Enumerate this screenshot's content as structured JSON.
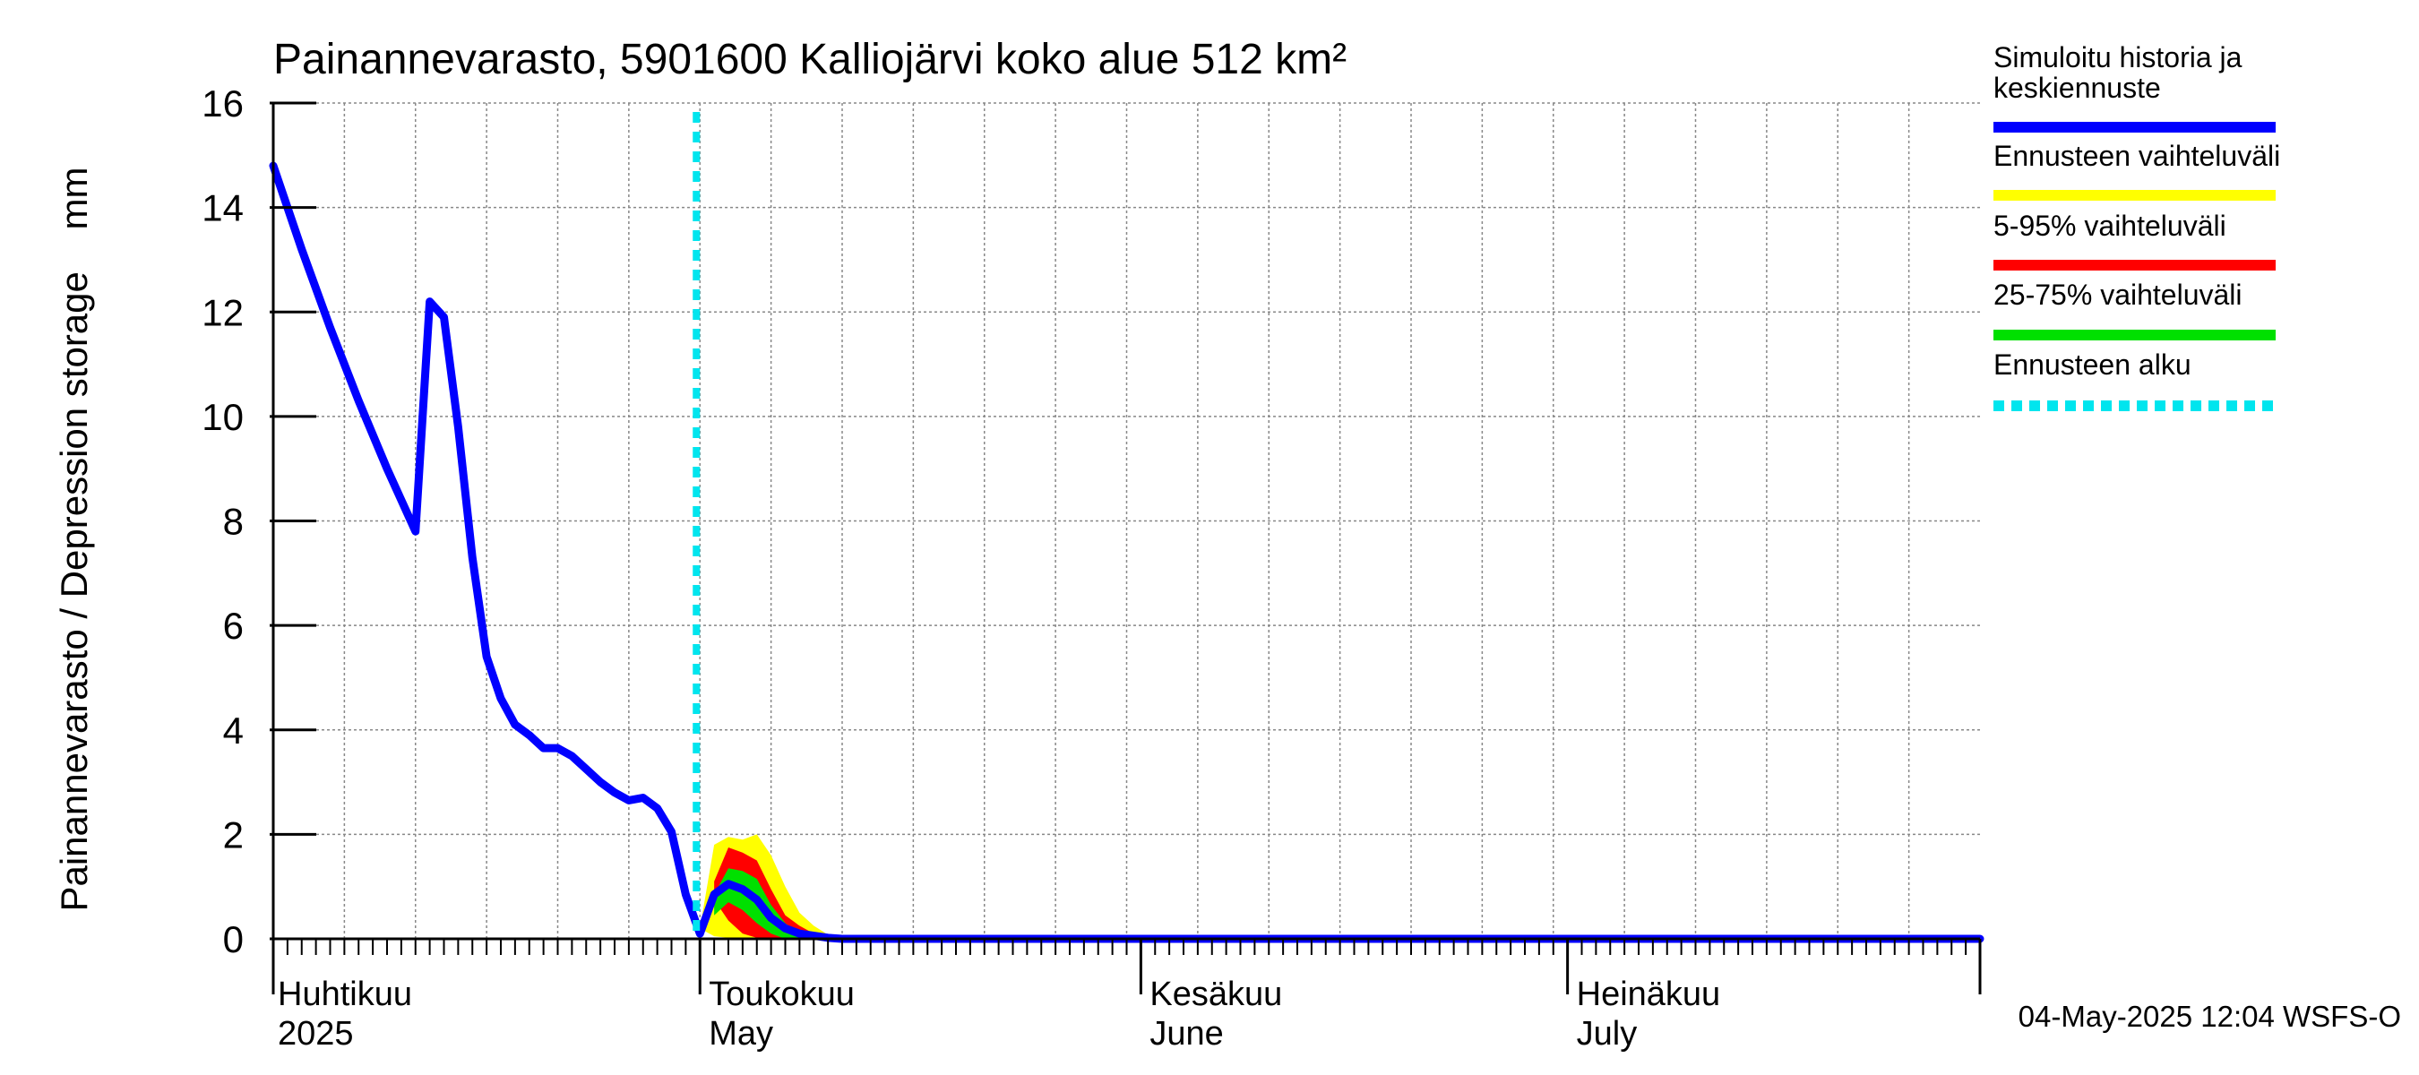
{
  "chart_data": {
    "type": "line",
    "title": "Painannevarasto, 5901600 Kalliojärvi koko alue 512 km²",
    "ylabel": "Painannevarasto / Depression storage    mm",
    "ylim": [
      0,
      16
    ],
    "yticks": [
      0,
      2,
      4,
      6,
      8,
      10,
      12,
      14,
      16
    ],
    "x_day_range": [
      0,
      120
    ],
    "grid": true,
    "x_month_labels": [
      {
        "day": 0,
        "fi": "Huhtikuu",
        "en": "2025"
      },
      {
        "day": 30,
        "fi": "Toukokuu",
        "en": "May"
      },
      {
        "day": 61,
        "fi": "Kesäkuu",
        "en": "June"
      },
      {
        "day": 91,
        "fi": "Heinäkuu",
        "en": "July"
      }
    ],
    "forecast_start_day": 30,
    "series": [
      {
        "name": "Simuloitu historia ja keskiennuste",
        "color": "#0000ff",
        "points": [
          [
            0,
            14.8
          ],
          [
            2,
            13.2
          ],
          [
            4,
            11.7
          ],
          [
            6,
            10.3
          ],
          [
            8,
            9.0
          ],
          [
            9,
            8.4
          ],
          [
            10,
            7.8
          ],
          [
            11,
            12.2
          ],
          [
            12,
            11.9
          ],
          [
            13,
            9.8
          ],
          [
            14,
            7.3
          ],
          [
            15,
            5.4
          ],
          [
            16,
            4.6
          ],
          [
            17,
            4.1
          ],
          [
            18,
            3.9
          ],
          [
            19,
            3.65
          ],
          [
            20,
            3.65
          ],
          [
            21,
            3.5
          ],
          [
            22,
            3.25
          ],
          [
            23,
            3.0
          ],
          [
            24,
            2.8
          ],
          [
            25,
            2.65
          ],
          [
            26,
            2.7
          ],
          [
            27,
            2.5
          ],
          [
            28,
            2.05
          ],
          [
            29,
            0.85
          ],
          [
            30,
            0.1
          ],
          [
            31,
            0.85
          ],
          [
            32,
            1.05
          ],
          [
            33,
            0.95
          ],
          [
            34,
            0.75
          ],
          [
            35,
            0.4
          ],
          [
            36,
            0.2
          ],
          [
            37,
            0.1
          ],
          [
            39,
            0.02
          ],
          [
            40,
            0.0
          ],
          [
            120,
            0.0
          ]
        ]
      }
    ],
    "bands": [
      {
        "name": "Ennusteen vaihteluväli",
        "color": "#ffff00",
        "upper": [
          [
            30,
            0.2
          ],
          [
            31,
            1.8
          ],
          [
            32,
            1.95
          ],
          [
            33,
            1.9
          ],
          [
            34,
            2.0
          ],
          [
            35,
            1.6
          ],
          [
            36,
            1.0
          ],
          [
            37,
            0.5
          ],
          [
            38,
            0.25
          ],
          [
            39,
            0.08
          ],
          [
            40,
            0.0
          ]
        ],
        "lower": [
          [
            30,
            0.2
          ],
          [
            31,
            0.05
          ],
          [
            32,
            0.02
          ],
          [
            33,
            0.0
          ],
          [
            40,
            0.0
          ]
        ]
      },
      {
        "name": "5-95% vaihteluväli",
        "color": "#ff0000",
        "upper": [
          [
            31,
            1.1
          ],
          [
            32,
            1.75
          ],
          [
            33,
            1.65
          ],
          [
            34,
            1.5
          ],
          [
            35,
            0.95
          ],
          [
            36,
            0.45
          ],
          [
            37,
            0.25
          ],
          [
            38,
            0.1
          ],
          [
            39,
            0.0
          ]
        ],
        "lower": [
          [
            31,
            0.75
          ],
          [
            32,
            0.35
          ],
          [
            33,
            0.1
          ],
          [
            34,
            0.02
          ],
          [
            35,
            0.0
          ],
          [
            39,
            0.0
          ]
        ]
      },
      {
        "name": "25-75% vaihteluväli",
        "color": "#00e000",
        "upper": [
          [
            31,
            0.85
          ],
          [
            32,
            1.35
          ],
          [
            33,
            1.3
          ],
          [
            34,
            1.15
          ],
          [
            35,
            0.65
          ],
          [
            36,
            0.3
          ],
          [
            37,
            0.1
          ],
          [
            38,
            0.0
          ]
        ],
        "lower": [
          [
            31,
            0.45
          ],
          [
            32,
            0.7
          ],
          [
            33,
            0.55
          ],
          [
            34,
            0.3
          ],
          [
            35,
            0.1
          ],
          [
            36,
            0.0
          ],
          [
            38,
            0.0
          ]
        ]
      }
    ],
    "legend": [
      {
        "label": "Simuloitu historia ja keskiennuste",
        "color": "#0000ff",
        "style": "line"
      },
      {
        "label": "Ennusteen vaihteluväli",
        "color": "#ffff00",
        "style": "line"
      },
      {
        "label": "5-95% vaihteluväli",
        "color": "#ff0000",
        "style": "line"
      },
      {
        "label": "25-75% vaihteluväli",
        "color": "#00e000",
        "style": "line"
      },
      {
        "label": "Ennusteen alku",
        "color": "#00e5ee",
        "style": "dotted"
      }
    ],
    "footer": "04-May-2025 12:04 WSFS-O"
  }
}
